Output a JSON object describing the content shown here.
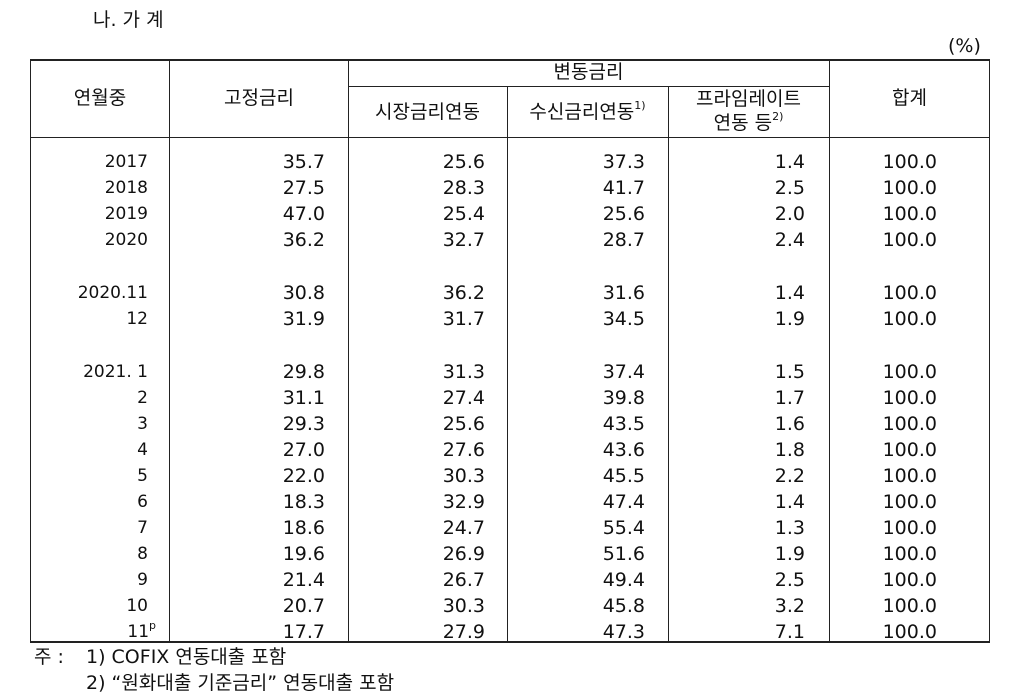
{
  "header": {
    "title": "나. 가 계",
    "unit": "(%)"
  },
  "table": {
    "headers": {
      "period": "연월중",
      "fixed": "고정금리",
      "variable": "변동금리",
      "market": "시장금리연동",
      "deposit": "수신금리연동",
      "deposit_note": "1)",
      "prime_line1": "프라임레이트",
      "prime_line2": "연동 등",
      "prime_note": "2)",
      "total": "합계"
    },
    "groups": [
      [
        {
          "label": "2017",
          "values": [
            "35.7",
            "25.6",
            "37.3",
            "1.4",
            "100.0"
          ]
        },
        {
          "label": "2018",
          "values": [
            "27.5",
            "28.3",
            "41.7",
            "2.5",
            "100.0"
          ]
        },
        {
          "label": "2019",
          "values": [
            "47.0",
            "25.4",
            "25.6",
            "2.0",
            "100.0"
          ]
        },
        {
          "label": "2020",
          "values": [
            "36.2",
            "32.7",
            "28.7",
            "2.4",
            "100.0"
          ]
        }
      ],
      [
        {
          "label": "2020.11",
          "values": [
            "30.8",
            "36.2",
            "31.6",
            "1.4",
            "100.0"
          ]
        },
        {
          "label": "12",
          "values": [
            "31.9",
            "31.7",
            "34.5",
            "1.9",
            "100.0"
          ]
        }
      ],
      [
        {
          "label": "2021. 1",
          "values": [
            "29.8",
            "31.3",
            "37.4",
            "1.5",
            "100.0"
          ]
        },
        {
          "label": "2",
          "values": [
            "31.1",
            "27.4",
            "39.8",
            "1.7",
            "100.0"
          ]
        },
        {
          "label": "3",
          "values": [
            "29.3",
            "25.6",
            "43.5",
            "1.6",
            "100.0"
          ]
        },
        {
          "label": "4",
          "values": [
            "27.0",
            "27.6",
            "43.6",
            "1.8",
            "100.0"
          ]
        },
        {
          "label": "5",
          "values": [
            "22.0",
            "30.3",
            "45.5",
            "2.2",
            "100.0"
          ]
        },
        {
          "label": "6",
          "values": [
            "18.3",
            "32.9",
            "47.4",
            "1.4",
            "100.0"
          ]
        },
        {
          "label": "7",
          "values": [
            "18.6",
            "24.7",
            "55.4",
            "1.3",
            "100.0"
          ]
        },
        {
          "label": "8",
          "values": [
            "19.6",
            "26.9",
            "51.6",
            "1.9",
            "100.0"
          ]
        },
        {
          "label": "9",
          "values": [
            "21.4",
            "26.7",
            "49.4",
            "2.5",
            "100.0"
          ]
        },
        {
          "label": "10",
          "values": [
            "20.7",
            "30.3",
            "45.8",
            "3.2",
            "100.0"
          ]
        },
        {
          "label": "11",
          "label_note": "p",
          "values": [
            "17.7",
            "27.9",
            "47.3",
            "7.1",
            "100.0"
          ]
        }
      ]
    ]
  },
  "notes": {
    "prefix": "주 :",
    "items": [
      "1) COFIX 연동대출 포함",
      "2) “원화대출 기준금리” 연동대출 포함"
    ]
  }
}
